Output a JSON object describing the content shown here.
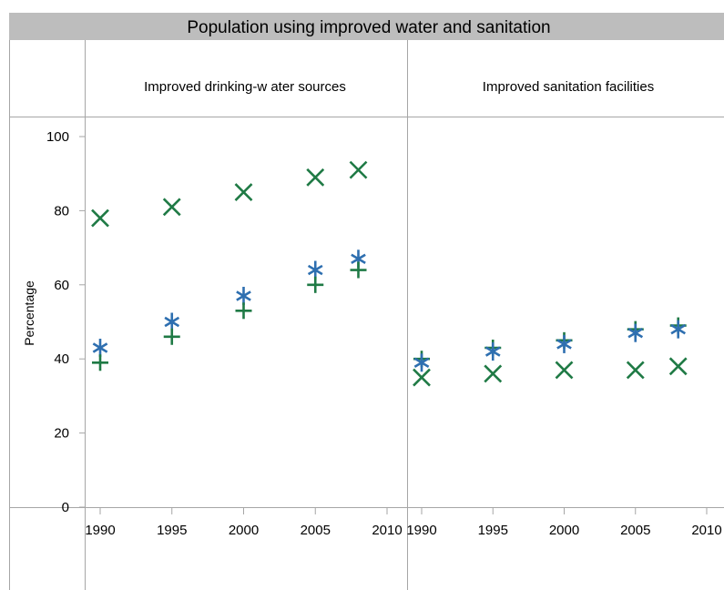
{
  "chart_data": {
    "type": "scatter",
    "title": "Population using improved water and sanitation",
    "ylabel": "Percentage",
    "ylim": [
      0,
      100
    ],
    "yticks": [
      0,
      20,
      40,
      60,
      80,
      100
    ],
    "xlim": [
      1988,
      2010
    ],
    "xticks": [
      1990,
      1995,
      2000,
      2005,
      2010
    ],
    "grid": false,
    "panels": [
      {
        "label": "Improved drinking-w ater sources",
        "series": [
          {
            "marker": "x",
            "color": "#1f7a45",
            "x": [
              1990,
              1995,
              2000,
              2005,
              2008
            ],
            "y": [
              78,
              81,
              85,
              89,
              91
            ]
          },
          {
            "marker": "asterisk",
            "color": "#2e6fb0",
            "x": [
              1990,
              1995,
              2000,
              2005,
              2008
            ],
            "y": [
              43,
              50,
              57,
              64,
              67
            ]
          },
          {
            "marker": "plus",
            "color": "#1f7a45",
            "x": [
              1990,
              1995,
              2000,
              2005,
              2008
            ],
            "y": [
              39,
              46,
              53,
              60,
              64
            ]
          }
        ]
      },
      {
        "label": "Improved sanitation facilities",
        "series": [
          {
            "marker": "plus",
            "color": "#1f7a45",
            "x": [
              1990,
              1995,
              2000,
              2005,
              2008
            ],
            "y": [
              40,
              43,
              45,
              48,
              49
            ]
          },
          {
            "marker": "asterisk",
            "color": "#2e6fb0",
            "x": [
              1990,
              1995,
              2000,
              2005,
              2008
            ],
            "y": [
              39,
              42,
              44,
              47,
              48
            ]
          },
          {
            "marker": "x",
            "color": "#1f7a45",
            "x": [
              1990,
              1995,
              2000,
              2005,
              2008
            ],
            "y": [
              35,
              36,
              37,
              37,
              38
            ]
          }
        ]
      }
    ]
  }
}
